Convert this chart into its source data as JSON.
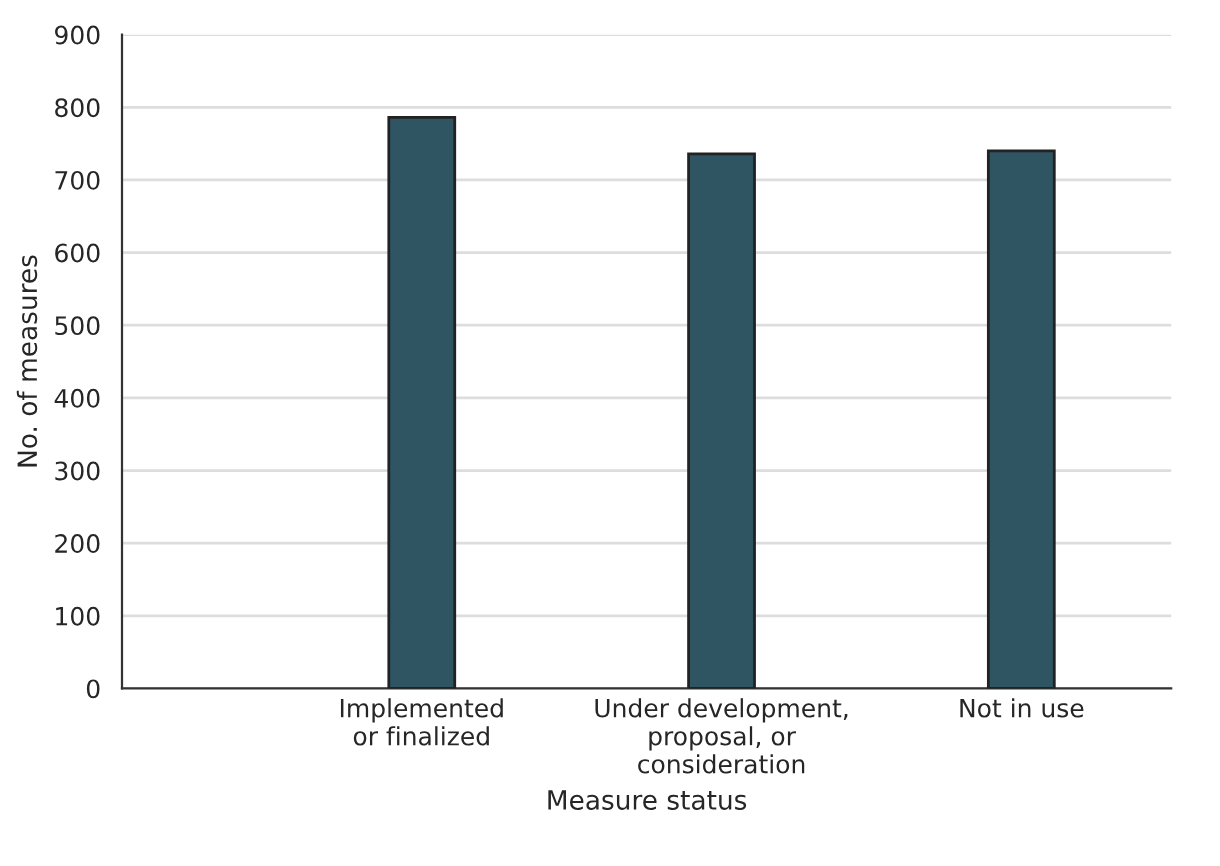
{
  "chart_data": {
    "type": "bar",
    "xlabel": "Measure status",
    "ylabel": "No. of measures",
    "categories": [
      "Implemented\nor finalized",
      "Under development,\nproposal, or\nconsideration",
      "Not in use"
    ],
    "values": [
      786,
      736,
      740
    ],
    "color": "#2f5462",
    "ylim": [
      0,
      900
    ],
    "yticks": [
      0,
      100,
      200,
      300,
      400,
      500,
      600,
      700,
      800,
      900
    ],
    "grid": "y",
    "legend": false
  }
}
